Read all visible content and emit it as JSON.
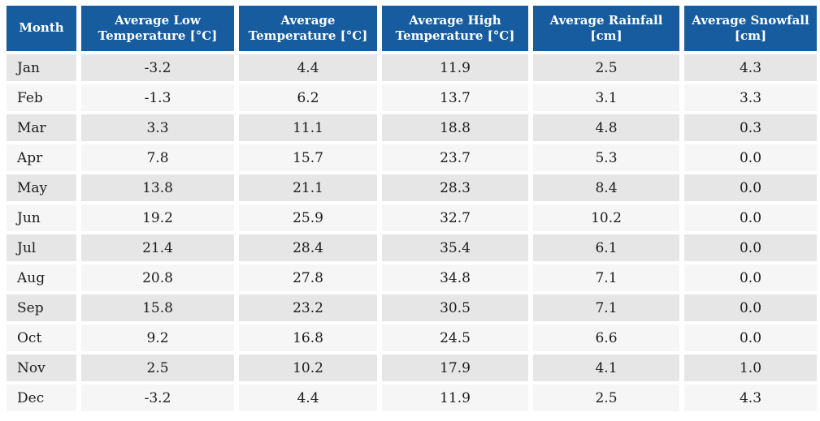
{
  "colors": {
    "header_bg": "#165C9E",
    "header_text": "#ffffff",
    "row_odd_bg": "#e6e6e6",
    "row_even_bg": "#f6f6f6",
    "body_text": "#1c1c1c",
    "page_bg": "#ffffff"
  },
  "chart_data": {
    "type": "table",
    "columns": [
      "Month",
      "Average Low Temperature [°C]",
      "Average Temperature [°C]",
      "Average High Temperature [°C]",
      "Average Rainfall [cm]",
      "Average Snowfall [cm]"
    ],
    "months": [
      "Jan",
      "Feb",
      "Mar",
      "Apr",
      "May",
      "Jun",
      "Jul",
      "Aug",
      "Sep",
      "Oct",
      "Nov",
      "Dec"
    ],
    "series": [
      {
        "name": "Average Low Temperature [°C]",
        "values": [
          -3.2,
          -1.3,
          3.3,
          7.8,
          13.8,
          19.2,
          21.4,
          20.8,
          15.8,
          9.2,
          2.5,
          -3.2
        ]
      },
      {
        "name": "Average Temperature [°C]",
        "values": [
          4.4,
          6.2,
          11.1,
          15.7,
          21.1,
          25.9,
          28.4,
          27.8,
          23.2,
          16.8,
          10.2,
          4.4
        ]
      },
      {
        "name": "Average High Temperature [°C]",
        "values": [
          11.9,
          13.7,
          18.8,
          23.7,
          28.3,
          32.7,
          35.4,
          34.8,
          30.5,
          24.5,
          17.9,
          11.9
        ]
      },
      {
        "name": "Average Rainfall [cm]",
        "values": [
          2.5,
          3.1,
          4.8,
          5.3,
          8.4,
          10.2,
          6.1,
          7.1,
          7.1,
          6.6,
          4.1,
          2.5
        ]
      },
      {
        "name": "Average Snowfall [cm]",
        "values": [
          4.3,
          3.3,
          0.3,
          0.0,
          0.0,
          0.0,
          0.0,
          0.0,
          0.0,
          0.0,
          1.0,
          4.3
        ]
      }
    ],
    "value_format": "one_decimal",
    "layout": {
      "header_rows": 1,
      "zebra_striping": true,
      "first_column_align": "left",
      "data_align": "center"
    }
  }
}
